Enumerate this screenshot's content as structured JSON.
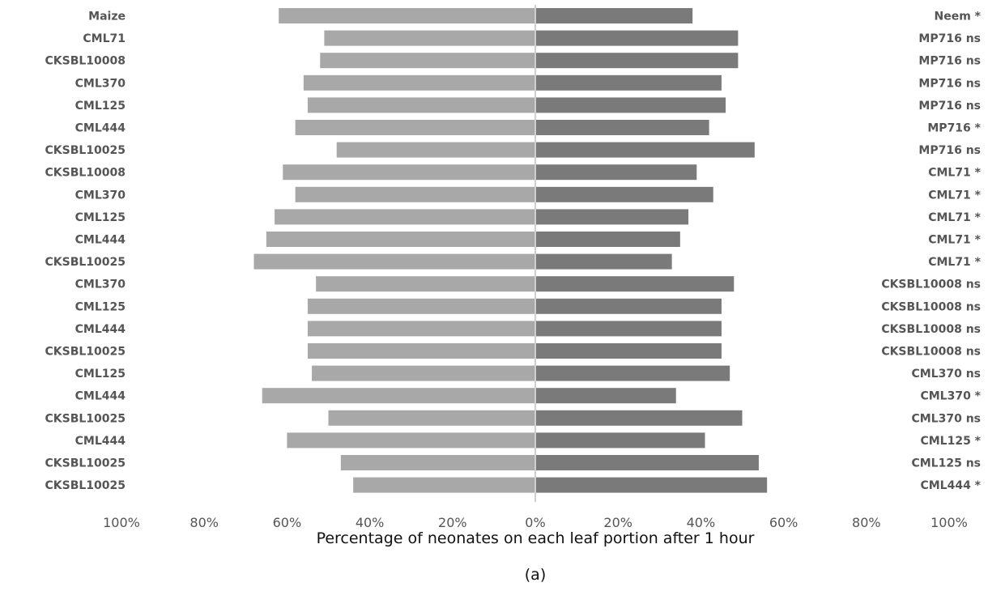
{
  "chart_data": {
    "type": "bar",
    "orientation": "horizontal-diverging",
    "xlabel": "Percentage of neonates on each leaf portion after 1 hour",
    "panel_label": "(a)",
    "x_ticks_left": [
      "100%",
      "80%",
      "60%",
      "40%",
      "20%",
      "0%"
    ],
    "x_ticks_right": [
      "20%",
      "40%",
      "60%",
      "80%",
      "100%"
    ],
    "xlim": [
      0,
      100
    ],
    "colors": {
      "left": "#a8a8a8",
      "right": "#7a7a7a",
      "center_line": "#cfcfcf"
    },
    "left_categories": [
      "Maize",
      "CML71",
      "CKSBL10008",
      "CML370",
      "CML125",
      "CML444",
      "CKSBL10025",
      "CKSBL10008",
      "CML370",
      "CML125",
      "CML444",
      "CKSBL10025",
      "CML370",
      "CML125",
      "CML444",
      "CKSBL10025",
      "CML125",
      "CML444",
      "CKSBL10025",
      "CML444",
      "CKSBL10025",
      "CKSBL10025"
    ],
    "left_values": [
      62,
      51,
      52,
      56,
      55,
      58,
      48,
      61,
      58,
      63,
      65,
      68,
      53,
      55,
      55,
      55,
      54,
      66,
      50,
      60,
      47,
      44
    ],
    "right_categories": [
      "Neem *",
      "MP716 ns",
      "MP716 ns",
      "MP716 ns",
      "MP716 ns",
      "MP716 *",
      "MP716 ns",
      "CML71 *",
      "CML71 *",
      "CML71 *",
      "CML71 *",
      "CML71 *",
      "CKSBL10008 ns",
      "CKSBL10008 ns",
      "CKSBL10008 ns",
      "CKSBL10008 ns",
      "CML370 ns",
      "CML370 *",
      "CML370 ns",
      "CML125 *",
      "CML125 ns",
      "CML444 *"
    ],
    "right_values": [
      38,
      49,
      49,
      45,
      46,
      42,
      53,
      39,
      43,
      37,
      35,
      33,
      48,
      45,
      45,
      45,
      47,
      34,
      50,
      41,
      54,
      56
    ]
  }
}
